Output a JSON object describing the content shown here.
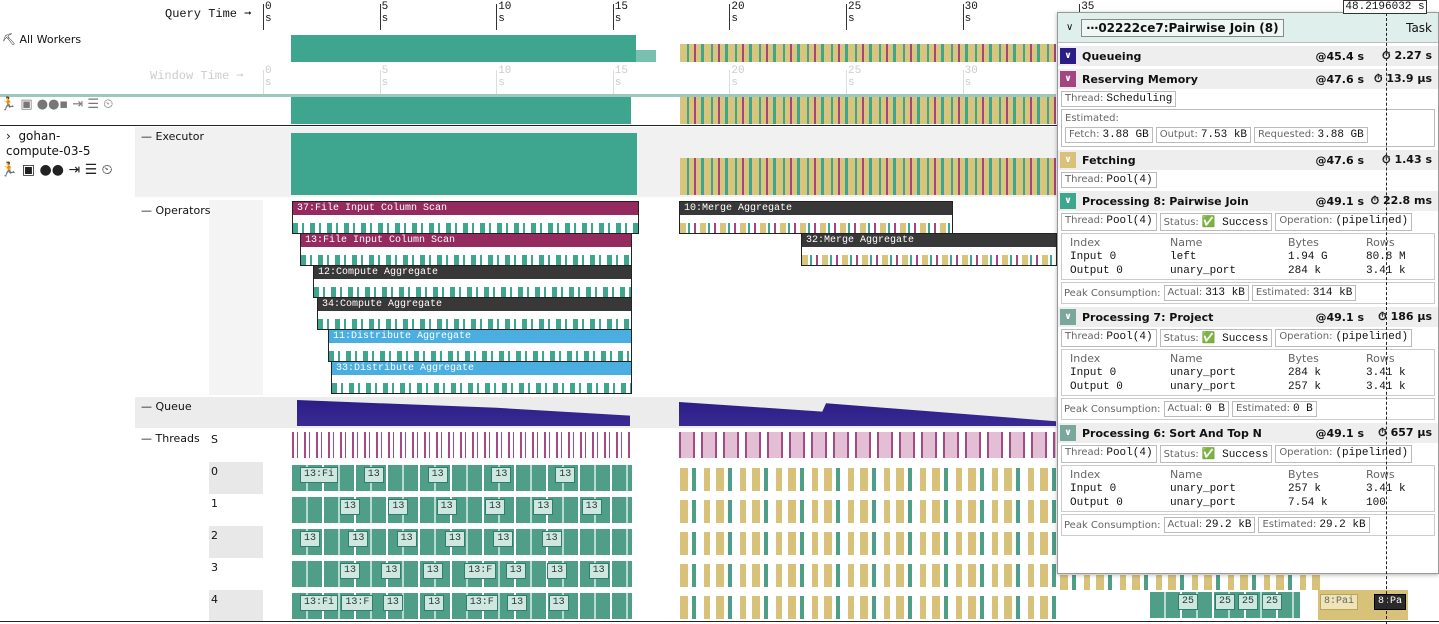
{
  "timeline": {
    "query_time_label": "Query Time ➞",
    "window_time_label": "Window Time ➞",
    "ticks": [
      "0 s",
      "5 s",
      "10 s",
      "15 s",
      "20 s",
      "25 s",
      "30 s",
      "35 s"
    ],
    "cursor": "48.2196032 s"
  },
  "sidebar": {
    "all_workers": "All Workers",
    "worker": "gohan-\ncompute-03-5"
  },
  "rows": {
    "executor": "Executor",
    "operators": "Operators",
    "queue": "Queue",
    "threads": "Threads"
  },
  "operators": [
    "37:File Input Column Scan",
    "13:File Input Column Scan",
    "12:Compute Aggregate",
    "34:Compute Aggregate",
    "11:Distribute Aggregate",
    "33:Distribute Aggregate",
    "10:Merge Aggregate",
    "32:Merge Aggregate"
  ],
  "threads": [
    {
      "id": "S",
      "chips": []
    },
    {
      "id": "0",
      "chips": [
        "13:Fi",
        "13",
        "13",
        "13",
        "13"
      ]
    },
    {
      "id": "1",
      "chips": [
        "13",
        "13",
        "13",
        "13",
        "13",
        "13"
      ]
    },
    {
      "id": "2",
      "chips": [
        "13",
        "13",
        "13",
        "13",
        "13",
        "13"
      ]
    },
    {
      "id": "3",
      "chips": [
        "13",
        "13",
        "13",
        "13:F",
        "13",
        "13",
        "13"
      ]
    },
    {
      "id": "4",
      "chips": [
        "13:Fi",
        "13:F",
        "13",
        "13",
        "13:F",
        "13",
        "13"
      ]
    }
  ],
  "late_chips": [
    "25",
    "25",
    "25",
    "25",
    "8:Pai",
    "8:Pa"
  ],
  "panel": {
    "title": "⋯02222ce7",
    "subtitle": ":Pairwise Join (8)",
    "tab": "Task",
    "sections": [
      {
        "name": "Queueing",
        "at": "@45.4 s",
        "duration": "2.27 s"
      },
      {
        "name": "Reserving Memory",
        "at": "@47.6 s",
        "duration": "13.9 µs",
        "fields": [
          {
            "label": "Thread:",
            "value": "Scheduling"
          }
        ],
        "estimated": {
          "label": "Estimated:",
          "fields": [
            {
              "label": "Fetch:",
              "value": "3.88 GB"
            },
            {
              "label": "Output:",
              "value": "7.53 kB"
            },
            {
              "label": "Requested:",
              "value": "3.88 GB"
            }
          ]
        }
      },
      {
        "name": "Fetching",
        "at": "@47.6 s",
        "duration": "1.43 s",
        "fields": [
          {
            "label": "Thread:",
            "value": "Pool(4)"
          }
        ]
      },
      {
        "name": "Processing 8: Pairwise Join",
        "at": "@49.1 s",
        "duration": "22.8 ms",
        "fields": [
          {
            "label": "Thread:",
            "value": "Pool(4)"
          },
          {
            "label": "Status:",
            "value": "✅ Success"
          },
          {
            "label": "Operation:",
            "value": "(pipelined)"
          }
        ],
        "table": {
          "header": [
            "Index",
            "Name",
            "Bytes",
            "Rows"
          ],
          "rows": [
            [
              "Input 0",
              "left",
              "1.94 G",
              "80.8 M"
            ],
            [
              "Output 0",
              "unary_port",
              "284 k",
              "3.41 k"
            ]
          ]
        },
        "peak": {
          "label": "Peak Consumption:",
          "fields": [
            {
              "label": "Actual:",
              "value": "313 kB"
            },
            {
              "label": "Estimated:",
              "value": "314 kB"
            }
          ]
        }
      },
      {
        "name": "Processing 7: Project",
        "at": "@49.1 s",
        "duration": "186 µs",
        "fields": [
          {
            "label": "Thread:",
            "value": "Pool(4)"
          },
          {
            "label": "Status:",
            "value": "✅ Success"
          },
          {
            "label": "Operation:",
            "value": "(pipelined)"
          }
        ],
        "table": {
          "header": [
            "Index",
            "Name",
            "Bytes",
            "Rows"
          ],
          "rows": [
            [
              "Input 0",
              "unary_port",
              "284 k",
              "3.41 k"
            ],
            [
              "Output 0",
              "unary_port",
              "257 k",
              "3.41 k"
            ]
          ]
        },
        "peak": {
          "label": "Peak Consumption:",
          "fields": [
            {
              "label": "Actual:",
              "value": "0 B"
            },
            {
              "label": "Estimated:",
              "value": "0 B"
            }
          ]
        }
      },
      {
        "name": "Processing 6: Sort And Top N",
        "at": "@49.1 s",
        "duration": "657 µs",
        "fields": [
          {
            "label": "Thread:",
            "value": "Pool(4)"
          },
          {
            "label": "Status:",
            "value": "✅ Success"
          },
          {
            "label": "Operation:",
            "value": "(pipelined)"
          }
        ],
        "table": {
          "header": [
            "Index",
            "Name",
            "Bytes",
            "Rows"
          ],
          "rows": [
            [
              "Input 0",
              "unary_port",
              "257 k",
              "3.41 k"
            ],
            [
              "Output 0",
              "unary_port",
              "7.54 k",
              "100"
            ]
          ]
        },
        "peak": {
          "label": "Peak Consumption:",
          "fields": [
            {
              "label": "Actual:",
              "value": "29.2 kB"
            },
            {
              "label": "Estimated:",
              "value": "29.2 kB"
            }
          ]
        }
      }
    ]
  }
}
